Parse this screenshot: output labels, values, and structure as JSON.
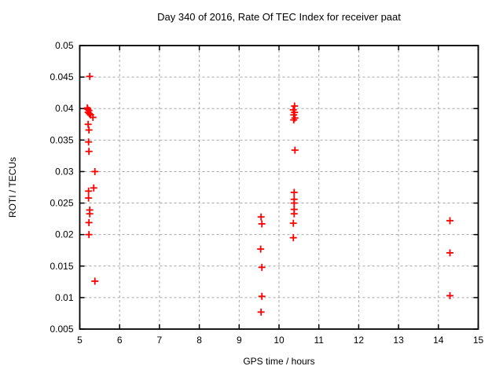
{
  "window": {
    "background": "#ffffff"
  },
  "chart_data": {
    "type": "scatter",
    "title": "Day 340 of 2016, Rate Of TEC Index for receiver paat",
    "xlabel": "GPS time / hours",
    "ylabel": "ROTI / TECUs",
    "xlim": [
      5,
      15
    ],
    "ylim": [
      0.005,
      0.05
    ],
    "x_ticks": [
      5,
      6,
      7,
      8,
      9,
      10,
      11,
      12,
      13,
      14,
      15
    ],
    "x_tick_labels": [
      "5",
      "6",
      "7",
      "8",
      "9",
      "10",
      "11",
      "12",
      "13",
      "14",
      "15"
    ],
    "y_ticks": [
      0.005,
      0.01,
      0.015,
      0.02,
      0.025,
      0.03,
      0.035,
      0.04,
      0.045,
      0.05
    ],
    "y_tick_labels": [
      "0.005",
      "0.01",
      "0.015",
      "0.02",
      "0.025",
      "0.03",
      "0.035",
      "0.04",
      "0.045",
      "0.05"
    ],
    "grid": true,
    "legend": "none",
    "marker": "plus",
    "marker_color": "#ff0000",
    "grid_color": "#a6a6a6",
    "border_color": "#000000",
    "series": [
      {
        "name": "ROTI",
        "points": [
          [
            5.25,
            0.0451
          ],
          [
            5.19,
            0.0401
          ],
          [
            5.2,
            0.0399
          ],
          [
            5.23,
            0.0397
          ],
          [
            5.21,
            0.0394
          ],
          [
            5.24,
            0.0392
          ],
          [
            5.27,
            0.039
          ],
          [
            5.33,
            0.0386
          ],
          [
            5.21,
            0.0375
          ],
          [
            5.23,
            0.0366
          ],
          [
            5.22,
            0.0347
          ],
          [
            5.23,
            0.0332
          ],
          [
            5.38,
            0.03
          ],
          [
            5.35,
            0.0274
          ],
          [
            5.22,
            0.0269
          ],
          [
            5.22,
            0.0258
          ],
          [
            5.25,
            0.0239
          ],
          [
            5.25,
            0.0233
          ],
          [
            5.23,
            0.0219
          ],
          [
            5.23,
            0.02
          ],
          [
            5.38,
            0.0126
          ],
          [
            9.55,
            0.0228
          ],
          [
            9.57,
            0.0217
          ],
          [
            9.54,
            0.0177
          ],
          [
            9.57,
            0.0148
          ],
          [
            9.57,
            0.0102
          ],
          [
            9.55,
            0.0077
          ],
          [
            10.39,
            0.0404
          ],
          [
            10.36,
            0.0398
          ],
          [
            10.39,
            0.0394
          ],
          [
            10.37,
            0.039
          ],
          [
            10.4,
            0.0385
          ],
          [
            10.37,
            0.0382
          ],
          [
            10.4,
            0.0334
          ],
          [
            10.38,
            0.0267
          ],
          [
            10.38,
            0.0256
          ],
          [
            10.38,
            0.025
          ],
          [
            10.38,
            0.024
          ],
          [
            10.38,
            0.0233
          ],
          [
            10.36,
            0.0218
          ],
          [
            10.36,
            0.0195
          ],
          [
            14.29,
            0.0222
          ],
          [
            14.29,
            0.0171
          ],
          [
            14.29,
            0.0103
          ]
        ]
      }
    ]
  }
}
